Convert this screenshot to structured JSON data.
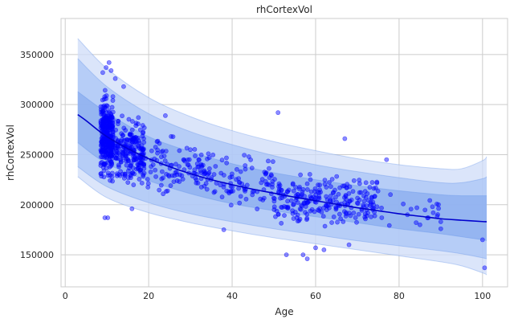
{
  "chart_data": {
    "type": "scatter",
    "title": "rhCortexVol",
    "xlabel": "Age",
    "ylabel": "rhCortexVol",
    "xlim": [
      -1,
      106
    ],
    "ylim": [
      118000,
      386000
    ],
    "x_ticks": [
      0,
      20,
      40,
      60,
      80,
      100
    ],
    "x_tick_labels": [
      "0",
      "20",
      "40",
      "60",
      "80",
      "100"
    ],
    "y_ticks": [
      150000,
      200000,
      250000,
      300000,
      350000
    ],
    "y_tick_labels": [
      "150000",
      "200000",
      "250000",
      "300000",
      "350000"
    ],
    "grid": true,
    "colors": {
      "points": "#0000ff",
      "line": "#0000cd",
      "band_outer": "#cfdcf8",
      "band_mid": "#a9c4f5",
      "band_inner": "#7aa3ec",
      "band_edges": "#5e8fe8",
      "grid": "#cccccc",
      "background": "#ffffff"
    },
    "fit_line": {
      "x": [
        3,
        5,
        8,
        10,
        12,
        15,
        20,
        25,
        30,
        35,
        40,
        45,
        50,
        55,
        60,
        65,
        70,
        75,
        80,
        85,
        90,
        95,
        100,
        101
      ],
      "y": [
        290000,
        284000,
        274000,
        268000,
        263000,
        256000,
        246000,
        238000,
        231000,
        225000,
        220000,
        215500,
        211500,
        207500,
        204000,
        200500,
        197000,
        194000,
        191000,
        188500,
        186000,
        184500,
        183200,
        183000
      ]
    },
    "bands": [
      {
        "level": "outer",
        "x": [
          3,
          10,
          20,
          30,
          40,
          50,
          60,
          70,
          80,
          90,
          95,
          100,
          101
        ],
        "upper": [
          366000,
          336000,
          307000,
          288000,
          274000,
          263000,
          254000,
          246000,
          240000,
          236000,
          236000,
          244000,
          248000
        ],
        "lower": [
          228000,
          207000,
          192000,
          182000,
          174000,
          167000,
          161000,
          155000,
          149000,
          143000,
          139000,
          132000,
          130000
        ]
      },
      {
        "level": "mid",
        "x": [
          3,
          10,
          20,
          30,
          40,
          50,
          60,
          70,
          80,
          90,
          95,
          100,
          101
        ],
        "upper": [
          346000,
          318000,
          291000,
          273000,
          260000,
          249000,
          240000,
          233000,
          227000,
          222000,
          222000,
          226000,
          228000
        ],
        "lower": [
          238000,
          218000,
          202000,
          191000,
          183000,
          176000,
          170000,
          164000,
          159000,
          154000,
          151000,
          147000,
          146000
        ]
      },
      {
        "level": "inner",
        "x": [
          3,
          10,
          20,
          30,
          40,
          50,
          60,
          70,
          80,
          90,
          95,
          100,
          101
        ],
        "upper": [
          313000,
          292000,
          268000,
          253000,
          241000,
          232000,
          225000,
          219000,
          214000,
          210000,
          209000,
          209000,
          209000
        ],
        "lower": [
          262000,
          241000,
          224000,
          211000,
          201000,
          194000,
          188000,
          182000,
          176000,
          171000,
          168000,
          165000,
          164000
        ]
      }
    ],
    "point_clusters": [
      {
        "x_range": [
          8.5,
          11.5
        ],
        "y_center": 268000,
        "y_spread": 28000,
        "count": 320
      },
      {
        "x_range": [
          12,
          19
        ],
        "y_center": 252000,
        "y_spread": 24000,
        "count": 220
      },
      {
        "x_range": [
          19,
          35
        ],
        "y_center": 237000,
        "y_spread": 20000,
        "count": 110
      },
      {
        "x_range": [
          35,
          50
        ],
        "y_center": 222000,
        "y_spread": 18000,
        "count": 80
      },
      {
        "x_range": [
          50,
          75
        ],
        "y_center": 205000,
        "y_spread": 18000,
        "count": 240
      },
      {
        "x_range": [
          75,
          90
        ],
        "y_center": 192000,
        "y_spread": 15000,
        "count": 18
      }
    ],
    "points": [
      {
        "x": 10.5,
        "y": 342000
      },
      {
        "x": 9.8,
        "y": 337000
      },
      {
        "x": 11.0,
        "y": 334000
      },
      {
        "x": 9.0,
        "y": 332000
      },
      {
        "x": 12.0,
        "y": 326000
      },
      {
        "x": 9.5,
        "y": 187000
      },
      {
        "x": 10.2,
        "y": 187000
      },
      {
        "x": 51.0,
        "y": 292000
      },
      {
        "x": 67.0,
        "y": 266000
      },
      {
        "x": 53.0,
        "y": 150000
      },
      {
        "x": 57.0,
        "y": 150000
      },
      {
        "x": 58.0,
        "y": 146000
      },
      {
        "x": 100.0,
        "y": 165000
      },
      {
        "x": 100.5,
        "y": 137000
      },
      {
        "x": 87.0,
        "y": 187000
      },
      {
        "x": 85.0,
        "y": 180000
      },
      {
        "x": 90.0,
        "y": 176000
      },
      {
        "x": 77.0,
        "y": 245000
      },
      {
        "x": 88.0,
        "y": 198000
      },
      {
        "x": 82.0,
        "y": 190000
      },
      {
        "x": 68.0,
        "y": 160000
      },
      {
        "x": 62.0,
        "y": 155000
      },
      {
        "x": 60.0,
        "y": 157000
      },
      {
        "x": 24.0,
        "y": 289000
      },
      {
        "x": 38.0,
        "y": 175000
      },
      {
        "x": 14.0,
        "y": 318000
      },
      {
        "x": 16.0,
        "y": 196000
      },
      {
        "x": 22.0,
        "y": 263000
      },
      {
        "x": 30.0,
        "y": 255000
      },
      {
        "x": 44.0,
        "y": 248000
      }
    ]
  }
}
